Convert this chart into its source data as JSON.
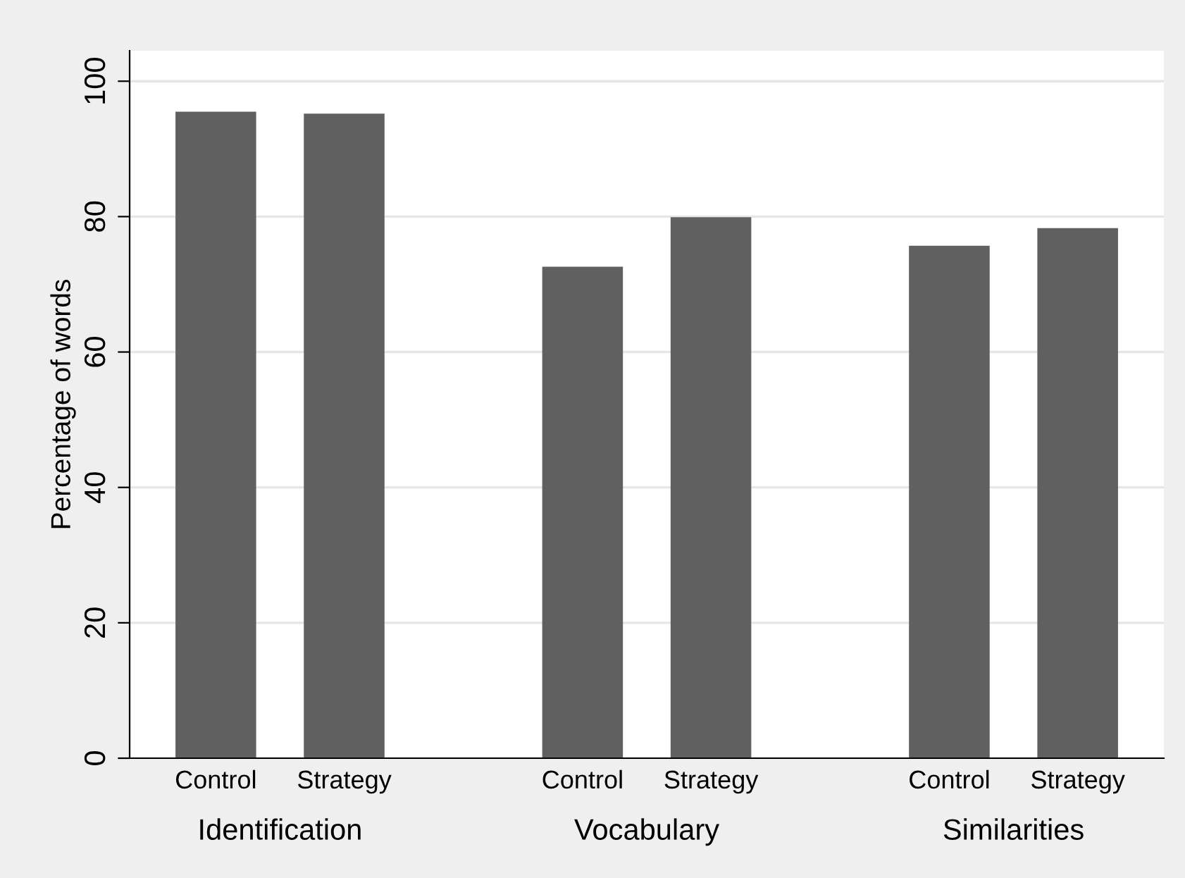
{
  "chart_data": {
    "type": "bar",
    "ylabel": "Percentage of words",
    "categories": [
      "Identification",
      "Vocabulary",
      "Similarities"
    ],
    "series": [
      {
        "name": "Control",
        "color": "#606060",
        "values": [
          95.5,
          72.6,
          75.7
        ]
      },
      {
        "name": "Strategy",
        "color": "#606060",
        "values": [
          95.2,
          79.9,
          78.3
        ]
      }
    ],
    "ylim": [
      0,
      104.5
    ],
    "yticks": [
      0,
      20,
      40,
      60,
      80,
      100
    ],
    "grid": "y"
  }
}
